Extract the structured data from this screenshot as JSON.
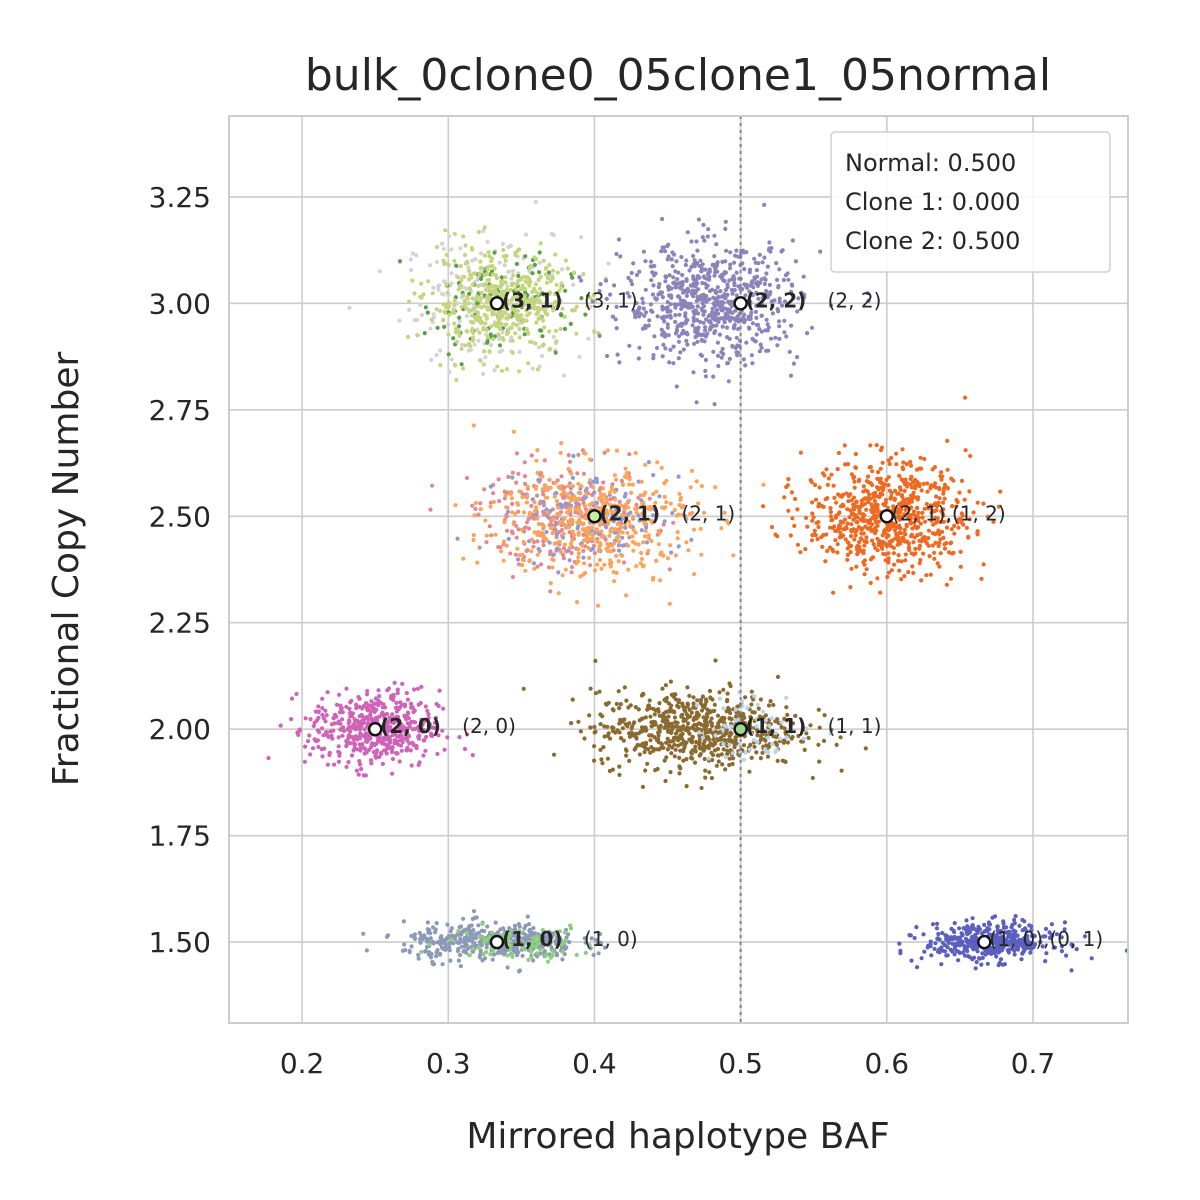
{
  "chart_data": {
    "type": "scatter",
    "title": "bulk_0clone0_05clone1_05normal",
    "xlabel": "Mirrored haplotype BAF",
    "ylabel": "Fractional Copy Number",
    "xlim": [
      0.15,
      0.765
    ],
    "ylim": [
      1.31,
      3.44
    ],
    "xticks": [
      0.2,
      0.3,
      0.4,
      0.5,
      0.6,
      0.7
    ],
    "yticks": [
      1.5,
      1.75,
      2.0,
      2.25,
      2.5,
      2.75,
      3.0,
      3.25
    ],
    "xtick_labels": [
      "0.2",
      "0.3",
      "0.4",
      "0.5",
      "0.6",
      "0.7"
    ],
    "ytick_labels": [
      "1.50",
      "1.75",
      "2.00",
      "2.25",
      "2.50",
      "2.75",
      "3.00",
      "3.25"
    ],
    "grid": true,
    "reference_line": {
      "orientation": "vertical",
      "x": 0.5,
      "style": "dotted",
      "color": "#808080"
    },
    "legend": {
      "placement": "top-right",
      "entries": [
        "Normal: 0.500",
        "Clone 1: 0.000",
        "Clone 2: 0.500"
      ]
    },
    "clusters": [
      {
        "name": "gray-3-1",
        "color": "#d3d3d3",
        "center": [
          0.33,
          3.0
        ],
        "spread": [
          0.03,
          0.08
        ],
        "count": 200
      },
      {
        "name": "green-3-1",
        "color": "#5aa049",
        "center": [
          0.335,
          3.0
        ],
        "spread": [
          0.025,
          0.06
        ],
        "count": 120
      },
      {
        "name": "lime-3-1",
        "color": "#c5d57e",
        "center": [
          0.335,
          3.0
        ],
        "spread": [
          0.025,
          0.06
        ],
        "count": 420
      },
      {
        "name": "purple-2-2",
        "color": "#8b84bb",
        "center": [
          0.48,
          3.0
        ],
        "spread": [
          0.03,
          0.07
        ],
        "count": 700
      },
      {
        "name": "pink-2-1",
        "color": "#e08a8f",
        "center": [
          0.38,
          2.5
        ],
        "spread": [
          0.03,
          0.06
        ],
        "count": 280
      },
      {
        "name": "blue-2-1",
        "color": "#8a9bd8",
        "center": [
          0.4,
          2.5
        ],
        "spread": [
          0.03,
          0.055
        ],
        "count": 130
      },
      {
        "name": "peach-2-1",
        "color": "#fca55a",
        "center": [
          0.4,
          2.49
        ],
        "spread": [
          0.035,
          0.07
        ],
        "count": 420
      },
      {
        "name": "orange-2-1-1-2",
        "color": "#ee6a22",
        "center": [
          0.6,
          2.5
        ],
        "spread": [
          0.028,
          0.065
        ],
        "count": 720
      },
      {
        "name": "magenta-2-0",
        "color": "#cf63b8",
        "center": [
          0.25,
          2.0
        ],
        "spread": [
          0.022,
          0.045
        ],
        "count": 500
      },
      {
        "name": "brown-1-1",
        "color": "#8b6a30",
        "center": [
          0.47,
          2.0
        ],
        "spread": [
          0.035,
          0.045
        ],
        "count": 700
      },
      {
        "name": "lightblue-1-1",
        "color": "#b8d4ec",
        "center": [
          0.51,
          2.0
        ],
        "spread": [
          0.02,
          0.04
        ],
        "count": 60
      },
      {
        "name": "steel-1-0",
        "color": "#8c9ab6",
        "center": [
          0.33,
          1.5
        ],
        "spread": [
          0.03,
          0.022
        ],
        "count": 420
      },
      {
        "name": "green-1-0",
        "color": "#8ccf7e",
        "center": [
          0.35,
          1.5
        ],
        "spread": [
          0.025,
          0.02
        ],
        "count": 90
      },
      {
        "name": "indigo-1-0-0-1",
        "color": "#5b5fbe",
        "center": [
          0.67,
          1.5
        ],
        "spread": [
          0.022,
          0.022
        ],
        "count": 420
      }
    ],
    "state_markers": [
      {
        "x": 0.3333,
        "y": 3.0,
        "fill": "#ffffff",
        "bold_label": "(3, 1)",
        "label": "(3, 1)"
      },
      {
        "x": 0.5,
        "y": 3.0,
        "fill": "#ffffff",
        "bold_label": "(2, 2)",
        "label": "(2, 2)"
      },
      {
        "x": 0.4,
        "y": 2.5,
        "fill": "#c8f0a0",
        "bold_label": "(2, 1)",
        "label": "(2, 1)"
      },
      {
        "x": 0.6,
        "y": 2.5,
        "fill": "#ffffff",
        "bold_label": "",
        "label": "(2, 1),(1, 2)"
      },
      {
        "x": 0.25,
        "y": 2.0,
        "fill": "#ffffff",
        "bold_label": "(2, 0)",
        "label": "(2, 0)"
      },
      {
        "x": 0.5,
        "y": 2.0,
        "fill": "#9ed88a",
        "bold_label": "(1, 1)",
        "label": "(1, 1)"
      },
      {
        "x": 0.3333,
        "y": 1.5,
        "fill": "#ffffff",
        "bold_label": "(1, 0)",
        "label": "(1, 0)"
      },
      {
        "x": 0.6667,
        "y": 1.5,
        "fill": "#ffffff",
        "bold_label": "",
        "label": "(1, 0),(0, 1)"
      }
    ]
  }
}
